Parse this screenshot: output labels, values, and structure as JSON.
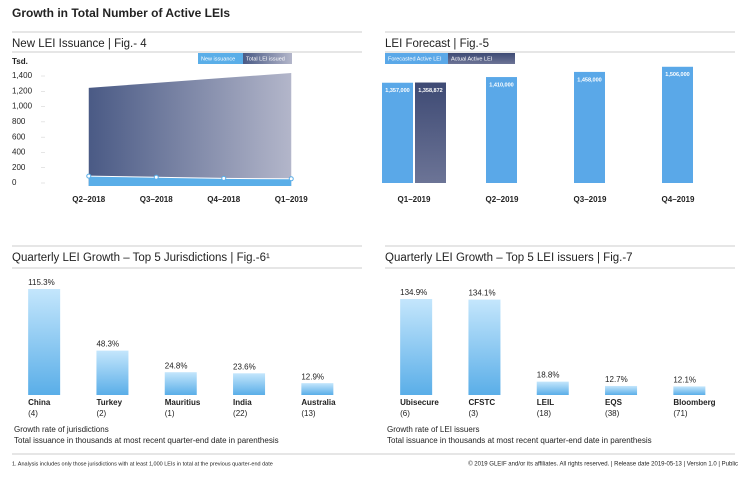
{
  "title": "Growth in Total Number of Active LEIs",
  "footnote": "1. Analysis includes only those jurisdictions with at least 1,000 LEIs in total at the previous quarter-end date",
  "copyright": "© 2019 GLEIF and/or its affiliates. All rights reserved.  |  Release date 2019-05-13  |  Version 1.0  |  Public",
  "chart_data": [
    {
      "type": "area",
      "title": "New LEI Issuance  |  Fig.- 4",
      "y_label": "Tsd.",
      "categories": [
        "Q2–2018",
        "Q3–2018",
        "Q4–2018",
        "Q1–2019"
      ],
      "series": [
        {
          "name": "New issuance",
          "color": "#5aaee8",
          "values": [
            90,
            75,
            60,
            55
          ]
        },
        {
          "name": "Total LEI issued",
          "color": "#4a5a85",
          "values": [
            1245,
            1310,
            1375,
            1440
          ]
        }
      ],
      "ylim": [
        0,
        1450
      ],
      "yticks": [
        0,
        200,
        400,
        600,
        800,
        {
          "value": 1000,
          "label": "1,000"
        },
        {
          "value": 1200,
          "label": "1,200"
        },
        {
          "value": 1400,
          "label": "1,400"
        }
      ]
    },
    {
      "type": "bar",
      "title": "LEI Forecast  |  Fig.-5",
      "categories": [
        "Q1–2019",
        "Q2–2019",
        "Q3–2019",
        "Q4–2019"
      ],
      "series": [
        {
          "name": "Forecasted Active LEI",
          "color": "#5aa8e8",
          "values": [
            1357000,
            1410000,
            1458000,
            1506000
          ],
          "value_labels": [
            "1,357,000",
            "1,410,000",
            "1,458,000",
            "1,506,000"
          ]
        },
        {
          "name": "Actual Active LEI",
          "color": "#4a5580",
          "values": [
            1358872,
            null,
            null,
            null
          ],
          "value_labels": [
            "1,358,872",
            null,
            null,
            null
          ]
        }
      ],
      "ylim": [
        420000,
        1560000
      ]
    },
    {
      "type": "bar",
      "title": "Quarterly LEI Growth – Top 5 Jurisdictions  |  Fig.-6¹",
      "categories": [
        "China",
        "Turkey",
        "Mauritius",
        "India",
        "Australia"
      ],
      "count_labels": [
        "(4)",
        "(2)",
        "(1)",
        "(22)",
        "(13)"
      ],
      "values": [
        115.3,
        48.3,
        24.8,
        23.6,
        12.9
      ],
      "value_labels": [
        "115.3%",
        "48.3%",
        "24.8%",
        "23.6%",
        "12.9%"
      ],
      "color": "#5aaee8",
      "ylim": [
        0,
        120
      ],
      "notes": [
        "Growth rate of jurisdictions",
        "Total issuance in thousands at most recent quarter-end date in parenthesis"
      ]
    },
    {
      "type": "bar",
      "title": "Quarterly LEI Growth – Top 5 LEI issuers  |  Fig.-7",
      "categories": [
        "Ubisecure",
        "CFSTC",
        "LEIL",
        "EQS",
        "Bloomberg"
      ],
      "count_labels": [
        "(6)",
        "(3)",
        "(18)",
        "(38)",
        "(71)"
      ],
      "values": [
        134.9,
        134.1,
        18.8,
        12.7,
        12.1
      ],
      "value_labels": [
        "134.9%",
        "134.1%",
        "18.8%",
        "12.7%",
        "12.1%"
      ],
      "color": "#5aaee8",
      "ylim": [
        0,
        140
      ],
      "notes": [
        "Growth rate of LEI issuers",
        "Total issuance in thousands at most recent quarter-end date in parenthesis"
      ]
    }
  ]
}
